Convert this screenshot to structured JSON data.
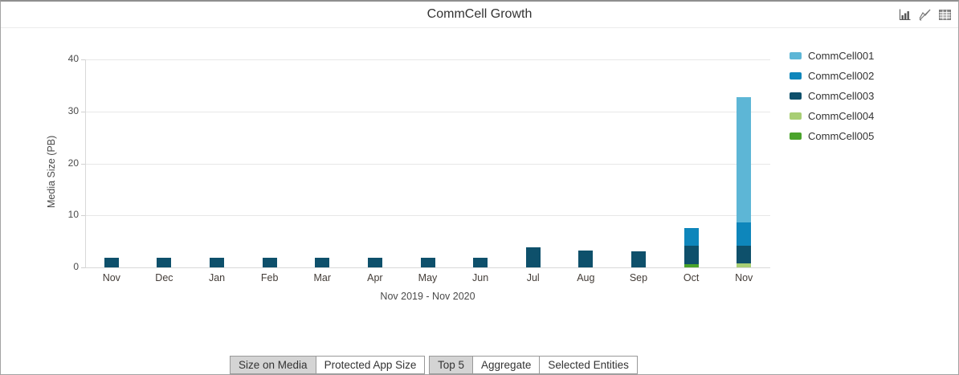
{
  "window": {
    "title": "CommCell Growth"
  },
  "toolbar": {
    "icons": [
      {
        "name": "bar-chart-view-icon"
      },
      {
        "name": "line-chart-view-disabled-icon"
      },
      {
        "name": "table-view-icon"
      }
    ]
  },
  "chart_data": {
    "type": "bar",
    "stacked": true,
    "title": "CommCell Growth",
    "xlabel": "Nov 2019 - Nov 2020",
    "ylabel": "Media Size (PB)",
    "ylim": [
      0,
      40
    ],
    "yticks": [
      0,
      10,
      20,
      30,
      40
    ],
    "grid": "horizontal",
    "legend_position": "right",
    "categories": [
      "Nov",
      "Dec",
      "Jan",
      "Feb",
      "Mar",
      "Apr",
      "May",
      "Jun",
      "Jul",
      "Aug",
      "Sep",
      "Oct",
      "Nov"
    ],
    "series": [
      {
        "name": "CommCell001",
        "color": "#5db6d6",
        "values": [
          0,
          0,
          0,
          0,
          0,
          0,
          0,
          0,
          0,
          0,
          0,
          0,
          24.0
        ]
      },
      {
        "name": "CommCell002",
        "color": "#0e86bb",
        "values": [
          0,
          0,
          0,
          0,
          0,
          0,
          0,
          0,
          0,
          0,
          0,
          3.4,
          4.6
        ]
      },
      {
        "name": "CommCell003",
        "color": "#0e506b",
        "values": [
          1.9,
          1.9,
          1.9,
          1.9,
          1.9,
          1.9,
          1.9,
          1.9,
          3.9,
          3.2,
          3.1,
          3.5,
          3.3
        ]
      },
      {
        "name": "CommCell004",
        "color": "#a8ce74",
        "values": [
          0,
          0,
          0,
          0,
          0,
          0,
          0,
          0,
          0,
          0,
          0,
          0,
          0.8
        ]
      },
      {
        "name": "CommCell005",
        "color": "#4aa32b",
        "values": [
          0,
          0,
          0,
          0,
          0,
          0,
          0,
          0,
          0,
          0,
          0,
          0.6,
          0
        ]
      }
    ],
    "stack_order_bottom_to_top": [
      "CommCell005",
      "CommCell004",
      "CommCell003",
      "CommCell002",
      "CommCell001"
    ]
  },
  "buttons": {
    "group1": [
      {
        "label": "Size on Media",
        "selected": true
      },
      {
        "label": "Protected App Size",
        "selected": false
      }
    ],
    "group2": [
      {
        "label": "Top 5",
        "selected": true
      },
      {
        "label": "Aggregate",
        "selected": false
      },
      {
        "label": "Selected Entities",
        "selected": false
      }
    ]
  }
}
